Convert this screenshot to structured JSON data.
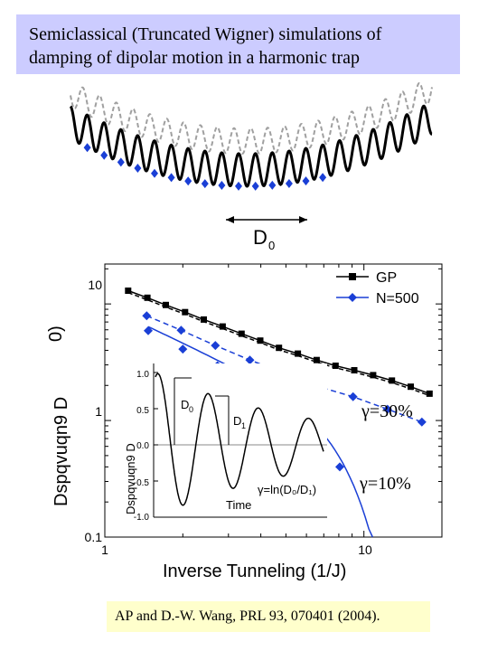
{
  "title": {
    "line1": "Semiclassical (Truncated Wigner) simulations of",
    "line2": "damping of dipolar motion in a harmonic trap"
  },
  "schematic": {
    "d0_label": "D",
    "d0_sub": "0",
    "colors": {
      "solid": "#000000",
      "dashed": "#a0a0a0",
      "markers": "#1a3fd6"
    }
  },
  "chart_data": [
    {
      "type": "line",
      "xlabel": "Inverse Tunneling (1/J)",
      "ylabel": "Dspqvuqn9 D",
      "xscale": "log",
      "yscale": "log",
      "xlim": [
        1,
        20
      ],
      "ylim": [
        0.1,
        22
      ],
      "x_ticks": [
        "1",
        "10"
      ],
      "y_ticks": [
        "0.1",
        "1",
        "10"
      ],
      "legend_position": "top-right",
      "top_left_label": "0)",
      "series": [
        {
          "name": "GP",
          "color": "#000000",
          "marker": "square",
          "x": [
            1.23,
            1.46,
            1.72,
            2.04,
            2.41,
            2.85,
            3.37,
            3.98,
            4.7,
            5.56,
            6.57,
            7.77,
            9.18,
            10.85,
            12.83,
            15.16,
            17.92
          ],
          "y": [
            13.0,
            11.3,
            9.8,
            8.5,
            7.35,
            6.4,
            5.55,
            4.85,
            4.2,
            3.75,
            3.3,
            2.95,
            2.7,
            2.45,
            2.2,
            1.95,
            1.7
          ]
        },
        {
          "name": "N=500",
          "color": "#1a3fd6",
          "marker": "diamond",
          "x": [
            1.45,
            1.97,
            2.67,
            3.63,
            4.93,
            6.69,
            9.08,
            12.33,
            16.74
          ],
          "y": [
            7.9,
            5.95,
            4.4,
            3.3,
            2.55,
            1.95,
            1.6,
            1.25,
            0.97
          ]
        },
        {
          "name": "",
          "color": "#1a3fd6",
          "marker": "diamond",
          "x": [
            1.47,
            2.0,
            2.72,
            3.69,
            5.01,
            6.8,
            8.07
          ],
          "y": [
            5.9,
            4.1,
            2.95,
            2.1,
            1.35,
            0.82,
            0.4
          ]
        }
      ],
      "annotations": [
        "γ=30%",
        "γ=10%"
      ]
    },
    {
      "type": "line",
      "inset": true,
      "xlabel": "Time",
      "ylabel": "Dspqvuqn9 D",
      "ylim": [
        -1.0,
        1.0
      ],
      "y_ticks": [
        "1.0",
        "0.5",
        "0.0",
        "-0.5",
        "-1.0"
      ],
      "labels": {
        "d0": "D",
        "d0_sub": "0",
        "d1": "D",
        "d1_sub": "1",
        "formula": "γ=ln(D₀/D₁)"
      }
    }
  ],
  "citation": "AP and D.-W. Wang, PRL 93, 070401 (2004)."
}
